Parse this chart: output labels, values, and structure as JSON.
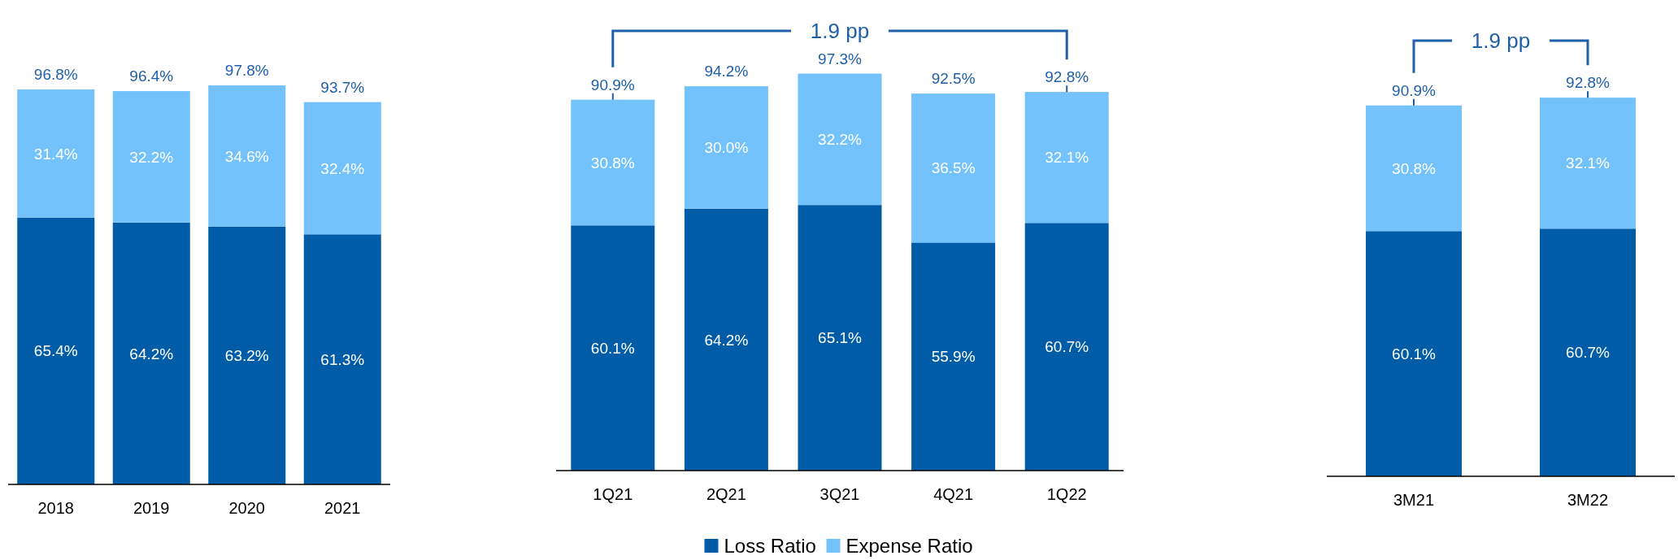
{
  "chart_data": [
    {
      "type": "bar",
      "stacked": true,
      "categories": [
        "2018",
        "2019",
        "2020",
        "2021"
      ],
      "series": [
        {
          "color": "#005ca6",
          "values": [
            65.4,
            64.2,
            63.2,
            61.3
          ],
          "value_labels": [
            "65.4%",
            "64.2%",
            "63.2%",
            "61.3%"
          ]
        },
        {
          "color": "#73c2fb",
          "values": [
            31.4,
            32.2,
            34.6,
            32.4
          ],
          "value_labels": [
            "31.4%",
            "32.2%",
            "34.6%",
            "32.4%"
          ]
        }
      ],
      "totals": [
        "96.8%",
        "96.4%",
        "97.8%",
        "93.7%"
      ],
      "legend": false
    },
    {
      "type": "bar",
      "stacked": true,
      "categories": [
        "1Q21",
        "2Q21",
        "3Q21",
        "4Q21",
        "1Q22"
      ],
      "series": [
        {
          "name": "Loss Ratio",
          "color": "#005ca6",
          "values": [
            60.1,
            64.2,
            65.1,
            55.9,
            60.7
          ],
          "value_labels": [
            "60.1%",
            "64.2%",
            "65.1%",
            "55.9%",
            "60.7%"
          ]
        },
        {
          "name": "Expense Ratio",
          "color": "#73c2fb",
          "values": [
            30.8,
            30.0,
            32.2,
            36.5,
            32.1
          ],
          "value_labels": [
            "30.8%",
            "30.0%",
            "32.2%",
            "36.5%",
            "32.1%"
          ]
        }
      ],
      "totals": [
        "90.9%",
        "94.2%",
        "97.3%",
        "92.5%",
        "92.8%"
      ],
      "legend": "bottom",
      "annotations": [
        "1.9 pp"
      ]
    },
    {
      "type": "bar",
      "stacked": true,
      "categories": [
        "3M21",
        "3M22"
      ],
      "series": [
        {
          "color": "#005ca6",
          "values": [
            60.1,
            60.7
          ],
          "value_labels": [
            "60.1%",
            "60.7%"
          ]
        },
        {
          "color": "#73c2fb",
          "values": [
            30.8,
            32.1
          ],
          "value_labels": [
            "30.8%",
            "32.1%"
          ]
        }
      ],
      "totals": [
        "90.9%",
        "92.8%"
      ],
      "legend": false,
      "annotations": [
        "1.9 pp"
      ]
    }
  ]
}
